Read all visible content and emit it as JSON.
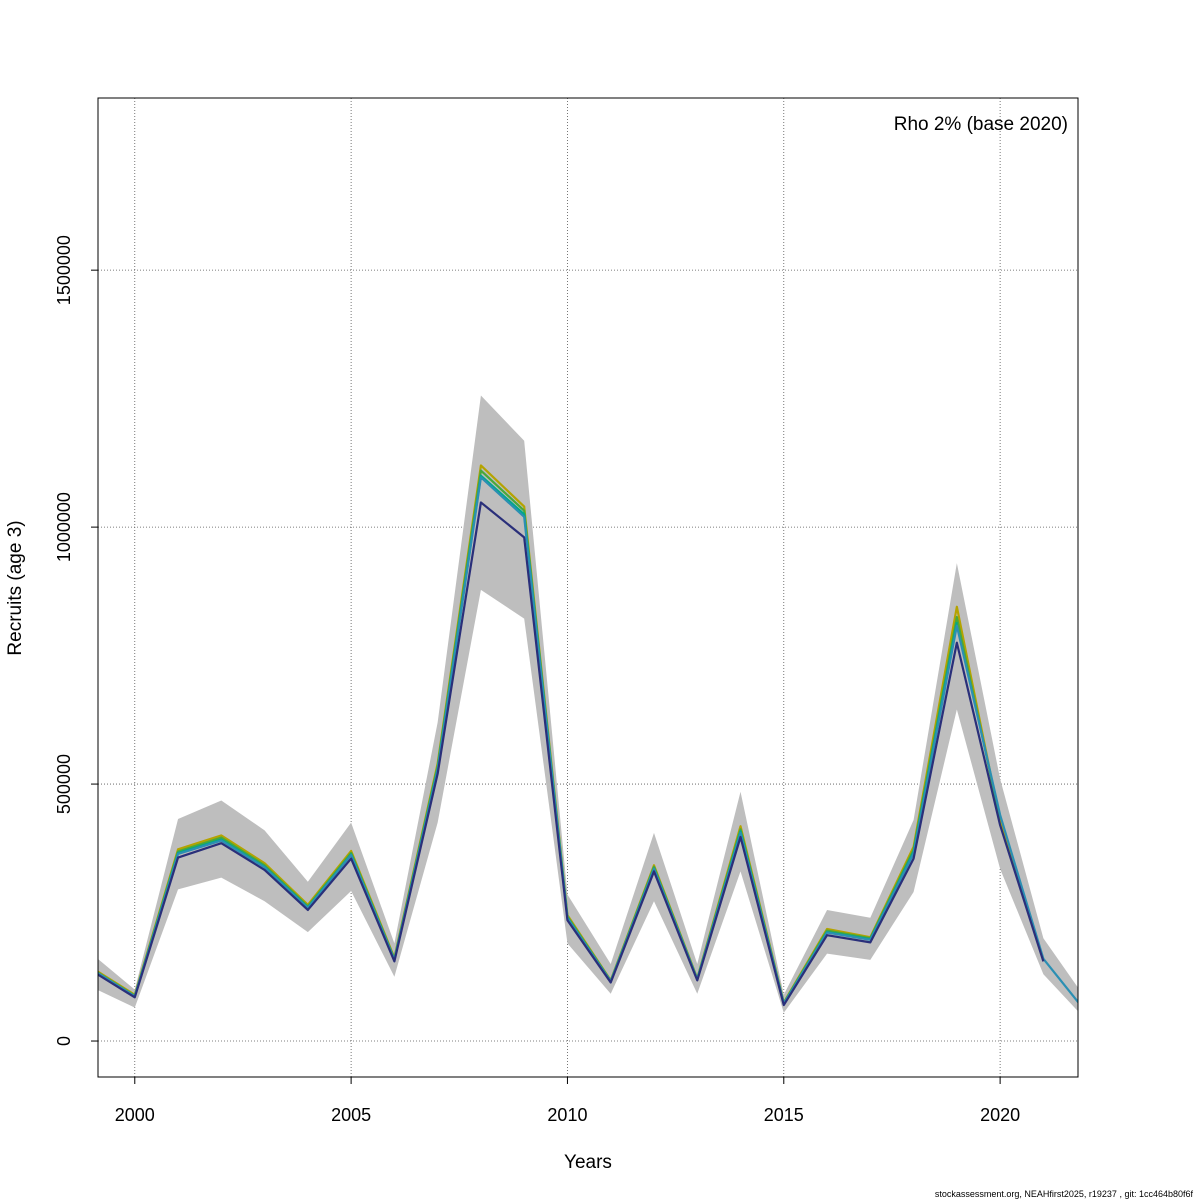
{
  "chart_data": {
    "type": "line",
    "annotation": "Rho 2% (base 2020)",
    "xlabel": "Years",
    "ylabel": "Recruits (age 3)",
    "xlim": [
      1999.15,
      2021.8
    ],
    "ylim": [
      -70000,
      1835000
    ],
    "x_ticks": [
      2000,
      2005,
      2010,
      2015,
      2020
    ],
    "x_tick_labels": [
      "2000",
      "2005",
      "2010",
      "2015",
      "2020"
    ],
    "y_ticks": [
      0,
      500000,
      1000000,
      1500000
    ],
    "y_tick_labels": [
      "0",
      "500000",
      "1000000",
      "1500000"
    ],
    "grid": true,
    "confidence_band": {
      "color": "#bebebe",
      "x": [
        1999,
        2000,
        2001,
        2002,
        2003,
        2004,
        2005,
        2006,
        2007,
        2008,
        2009,
        2010,
        2011,
        2012,
        2013,
        2014,
        2015,
        2016,
        2017,
        2018,
        2019,
        2020,
        2021,
        2022
      ],
      "lower": [
        105000,
        65000,
        295000,
        318000,
        272000,
        212000,
        292000,
        125000,
        425000,
        878000,
        822000,
        190000,
        92000,
        272000,
        92000,
        330000,
        55000,
        170000,
        158000,
        290000,
        645000,
        335000,
        130000,
        40000
      ],
      "upper": [
        170000,
        100000,
        432000,
        468000,
        410000,
        310000,
        425000,
        190000,
        620000,
        1256000,
        1168000,
        285000,
        150000,
        405000,
        150000,
        485000,
        90000,
        255000,
        240000,
        430000,
        930000,
        510000,
        200000,
        80000
      ]
    },
    "series": [
      {
        "color": "#b5a300",
        "x": [
          1999,
          2000,
          2001,
          2002,
          2003,
          2004,
          2005,
          2006,
          2007,
          2008,
          2009,
          2010,
          2011,
          2012,
          2013,
          2014,
          2015,
          2016,
          2017,
          2018,
          2019,
          2020,
          2021
        ],
        "values": [
          143000,
          90000,
          373000,
          400000,
          346000,
          265000,
          370000,
          162000,
          540000,
          1120000,
          1040000,
          245000,
          118000,
          342000,
          122000,
          418000,
          75000,
          218000,
          202000,
          378000,
          845000,
          428000,
          158000
        ]
      },
      {
        "color": "#4aa83a",
        "x": [
          1999,
          2000,
          2001,
          2002,
          2003,
          2004,
          2005,
          2006,
          2007,
          2008,
          2009,
          2010,
          2011,
          2012,
          2013,
          2014,
          2015,
          2016,
          2017,
          2018,
          2019,
          2020
        ],
        "values": [
          141000,
          88000,
          369000,
          396000,
          342000,
          262000,
          366000,
          160000,
          535000,
          1110000,
          1032000,
          242000,
          117000,
          339000,
          121000,
          412000,
          74000,
          215000,
          200000,
          372000,
          825000,
          430000
        ]
      },
      {
        "color": "#00a88a",
        "x": [
          1999,
          2000,
          2001,
          2002,
          2003,
          2004,
          2005,
          2006,
          2007,
          2008,
          2009,
          2010,
          2011,
          2012,
          2013,
          2014,
          2015,
          2016,
          2017,
          2018,
          2019
        ],
        "values": [
          139000,
          87000,
          366000,
          392000,
          339000,
          260000,
          363000,
          158000,
          530000,
          1100000,
          1025000,
          240000,
          116000,
          336000,
          120000,
          408000,
          73000,
          212000,
          198000,
          368000,
          815000
        ]
      },
      {
        "color": "#2b8fb3",
        "x": [
          1999,
          2000,
          2001,
          2002,
          2003,
          2004,
          2005,
          2006,
          2007,
          2008,
          2009,
          2010,
          2011,
          2012,
          2013,
          2014,
          2015,
          2016,
          2017,
          2018,
          2019,
          2020,
          2021,
          2022
        ],
        "values": [
          140000,
          87000,
          364000,
          390000,
          338000,
          259000,
          362000,
          158000,
          528000,
          1097000,
          1020000,
          239000,
          116000,
          335000,
          120000,
          405000,
          73000,
          211000,
          197000,
          365000,
          808000,
          440000,
          160000,
          55000
        ]
      },
      {
        "color": "#2a2f7a",
        "x": [
          1999,
          2000,
          2001,
          2002,
          2003,
          2004,
          2005,
          2006,
          2007,
          2008,
          2009,
          2010,
          2011,
          2012,
          2013,
          2014,
          2015,
          2016,
          2017,
          2018,
          2019,
          2020,
          2021
        ],
        "values": [
          137000,
          85000,
          357000,
          385000,
          333000,
          255000,
          355000,
          155000,
          520000,
          1048000,
          980000,
          235000,
          114000,
          330000,
          118000,
          397000,
          70000,
          206000,
          192000,
          355000,
          775000,
          420000,
          155000
        ]
      }
    ]
  },
  "footer": {
    "credit": "stockassessment.org, NEAHfirst2025, r19237 , git: 1cc464b80f6f"
  }
}
